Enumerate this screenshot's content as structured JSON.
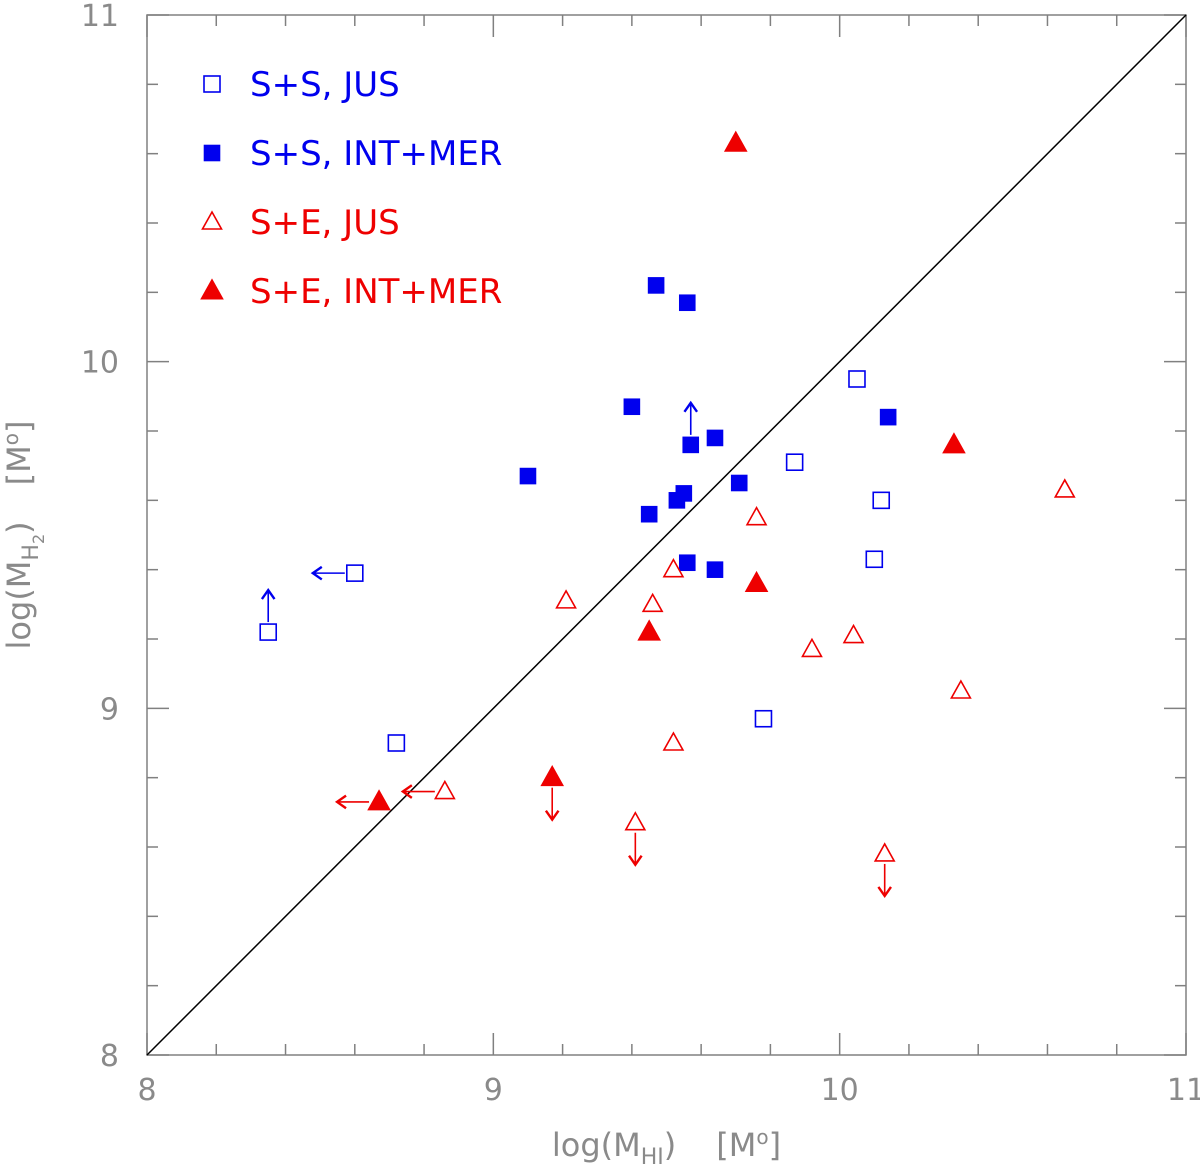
{
  "chart_data": {
    "type": "scatter",
    "title": "",
    "xlabel": {
      "prefix": "log(M",
      "sub": "HI",
      "suffix": ")",
      "unit_open": "[M",
      "unit_sub": "o",
      "unit_close": "]"
    },
    "ylabel": {
      "prefix": "log(M",
      "sub": "H",
      "subsub": "2",
      "suffix": ")",
      "unit_open": "[M",
      "unit_sub": "o",
      "unit_close": "]"
    },
    "xlim": [
      8,
      11
    ],
    "ylim": [
      8,
      11
    ],
    "x_ticks": [
      "8",
      "9",
      "10",
      "11"
    ],
    "y_ticks": [
      "8",
      "9",
      "10",
      "11"
    ],
    "reference_line": {
      "label": "one-to-one",
      "from": [
        8,
        8
      ],
      "to": [
        11,
        11
      ]
    },
    "legend_position": "top-left",
    "colors": {
      "blue": "#0000ee",
      "red": "#ee0000",
      "axis": "#808080",
      "line": "#000000"
    },
    "series": [
      {
        "name": "S+S, JUS",
        "marker": "square-open",
        "color": "#0000ee",
        "points": [
          {
            "x": 8.35,
            "y": 9.22,
            "limit": "up"
          },
          {
            "x": 8.6,
            "y": 9.39,
            "limit": "left"
          },
          {
            "x": 8.72,
            "y": 8.9
          },
          {
            "x": 9.78,
            "y": 8.97
          },
          {
            "x": 9.87,
            "y": 9.71
          },
          {
            "x": 10.05,
            "y": 9.95
          },
          {
            "x": 10.1,
            "y": 9.43
          },
          {
            "x": 10.12,
            "y": 9.6
          }
        ]
      },
      {
        "name": "S+S, INT+MER",
        "marker": "square-filled",
        "color": "#0000ee",
        "points": [
          {
            "x": 9.1,
            "y": 9.67
          },
          {
            "x": 9.4,
            "y": 9.87
          },
          {
            "x": 9.45,
            "y": 9.56
          },
          {
            "x": 9.47,
            "y": 10.22
          },
          {
            "x": 9.53,
            "y": 9.6
          },
          {
            "x": 9.55,
            "y": 9.62
          },
          {
            "x": 9.56,
            "y": 9.42
          },
          {
            "x": 9.56,
            "y": 10.17
          },
          {
            "x": 9.57,
            "y": 9.76,
            "limit": "up"
          },
          {
            "x": 9.64,
            "y": 9.4
          },
          {
            "x": 9.64,
            "y": 9.78
          },
          {
            "x": 9.71,
            "y": 9.65
          },
          {
            "x": 10.14,
            "y": 9.84
          }
        ]
      },
      {
        "name": "S+E, JUS",
        "marker": "triangle-open",
        "color": "#ee0000",
        "points": [
          {
            "x": 8.86,
            "y": 8.76,
            "limit": "left"
          },
          {
            "x": 9.21,
            "y": 9.31
          },
          {
            "x": 9.41,
            "y": 8.67,
            "limit": "down"
          },
          {
            "x": 9.46,
            "y": 9.3
          },
          {
            "x": 9.52,
            "y": 9.4
          },
          {
            "x": 9.52,
            "y": 8.9
          },
          {
            "x": 9.76,
            "y": 9.55
          },
          {
            "x": 9.92,
            "y": 9.17
          },
          {
            "x": 10.04,
            "y": 9.21
          },
          {
            "x": 10.13,
            "y": 8.58,
            "limit": "down"
          },
          {
            "x": 10.35,
            "y": 9.05
          },
          {
            "x": 10.65,
            "y": 9.63
          }
        ]
      },
      {
        "name": "S+E, INT+MER",
        "marker": "triangle-filled",
        "color": "#ee0000",
        "points": [
          {
            "x": 8.67,
            "y": 8.73,
            "limit": "left"
          },
          {
            "x": 9.17,
            "y": 8.8,
            "limit": "down"
          },
          {
            "x": 9.45,
            "y": 9.22
          },
          {
            "x": 9.7,
            "y": 10.63
          },
          {
            "x": 9.76,
            "y": 9.36
          },
          {
            "x": 10.33,
            "y": 9.76
          }
        ]
      }
    ]
  }
}
